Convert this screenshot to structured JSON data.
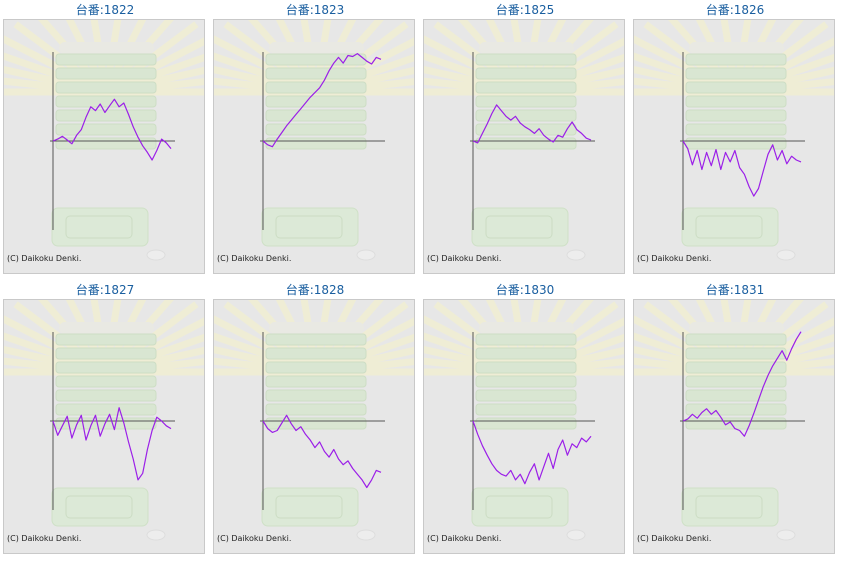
{
  "page": {
    "credit": "(C) Daikoku Denki."
  },
  "style": {
    "line_color": "#9b1fe8",
    "axis_color": "#555555",
    "title_color": "#1a5fa0",
    "background": "#e7e7e7"
  },
  "chart_data": [
    {
      "type": "line",
      "title": "台番:1822",
      "grid": false,
      "values": [
        0,
        0.2,
        0.5,
        0.1,
        -0.3,
        0.6,
        1.2,
        2.5,
        3.6,
        3.2,
        3.9,
        3.0,
        3.7,
        4.4,
        3.6,
        4.0,
        2.8,
        1.5,
        0.4,
        -0.5,
        -1.2,
        -2.0,
        -1.0,
        0.2,
        -0.2,
        -0.8
      ]
    },
    {
      "type": "line",
      "title": "台番:1823",
      "grid": false,
      "values": [
        0,
        -0.4,
        -0.6,
        0.2,
        0.9,
        1.6,
        2.2,
        2.8,
        3.4,
        4.0,
        4.6,
        5.1,
        5.6,
        6.4,
        7.4,
        8.2,
        8.8,
        8.2,
        9.0,
        8.9,
        9.2,
        8.8,
        8.4,
        8.1,
        8.8,
        8.6
      ]
    },
    {
      "type": "line",
      "title": "台番:1825",
      "grid": false,
      "values": [
        0,
        -0.2,
        0.8,
        1.8,
        2.9,
        3.8,
        3.2,
        2.6,
        2.2,
        2.6,
        1.9,
        1.5,
        1.2,
        0.8,
        1.3,
        0.6,
        0.2,
        -0.1,
        0.6,
        0.4,
        1.3,
        2.0,
        1.2,
        0.8,
        0.3,
        0.1
      ]
    },
    {
      "type": "line",
      "title": "台番:1826",
      "grid": false,
      "values": [
        0,
        -0.8,
        -2.5,
        -1.0,
        -3.0,
        -1.2,
        -2.6,
        -0.9,
        -3.0,
        -1.2,
        -2.2,
        -1.0,
        -2.8,
        -3.5,
        -4.8,
        -5.8,
        -5.0,
        -3.2,
        -1.4,
        -0.4,
        -2.0,
        -1.0,
        -2.4,
        -1.6,
        -2.0,
        -2.2
      ]
    },
    {
      "type": "line",
      "title": "台番:1827",
      "grid": false,
      "values": [
        0,
        -1.5,
        -0.5,
        0.5,
        -1.8,
        -0.4,
        0.6,
        -2.0,
        -0.5,
        0.6,
        -1.6,
        -0.3,
        0.7,
        -0.9,
        1.4,
        -0.2,
        -2.2,
        -4.0,
        -6.2,
        -5.5,
        -3.0,
        -1.0,
        0.4,
        0.0,
        -0.5,
        -0.8
      ]
    },
    {
      "type": "line",
      "title": "台番:1828",
      "grid": false,
      "values": [
        0,
        -0.8,
        -1.2,
        -1.0,
        -0.2,
        0.6,
        -0.3,
        -1.0,
        -0.6,
        -1.4,
        -2.0,
        -2.8,
        -2.2,
        -3.2,
        -3.8,
        -3.0,
        -4.0,
        -4.6,
        -4.2,
        -5.0,
        -5.6,
        -6.2,
        -7.0,
        -6.2,
        -5.2,
        -5.4
      ]
    },
    {
      "type": "line",
      "title": "台番:1830",
      "grid": false,
      "values": [
        0,
        -1.4,
        -2.6,
        -3.6,
        -4.5,
        -5.2,
        -5.6,
        -5.8,
        -5.2,
        -6.2,
        -5.6,
        -6.6,
        -5.4,
        -4.5,
        -6.2,
        -4.8,
        -3.4,
        -5.0,
        -3.0,
        -2.0,
        -3.6,
        -2.4,
        -2.8,
        -1.8,
        -2.2,
        -1.6
      ]
    },
    {
      "type": "line",
      "title": "台番:1831",
      "grid": false,
      "values": [
        0,
        0.2,
        0.7,
        0.3,
        0.9,
        1.3,
        0.7,
        1.1,
        0.4,
        -0.4,
        -0.1,
        -0.8,
        -1.0,
        -1.6,
        -0.5,
        0.8,
        2.2,
        3.6,
        4.8,
        5.8,
        6.6,
        7.4,
        6.4,
        7.6,
        8.6,
        9.4
      ]
    }
  ]
}
